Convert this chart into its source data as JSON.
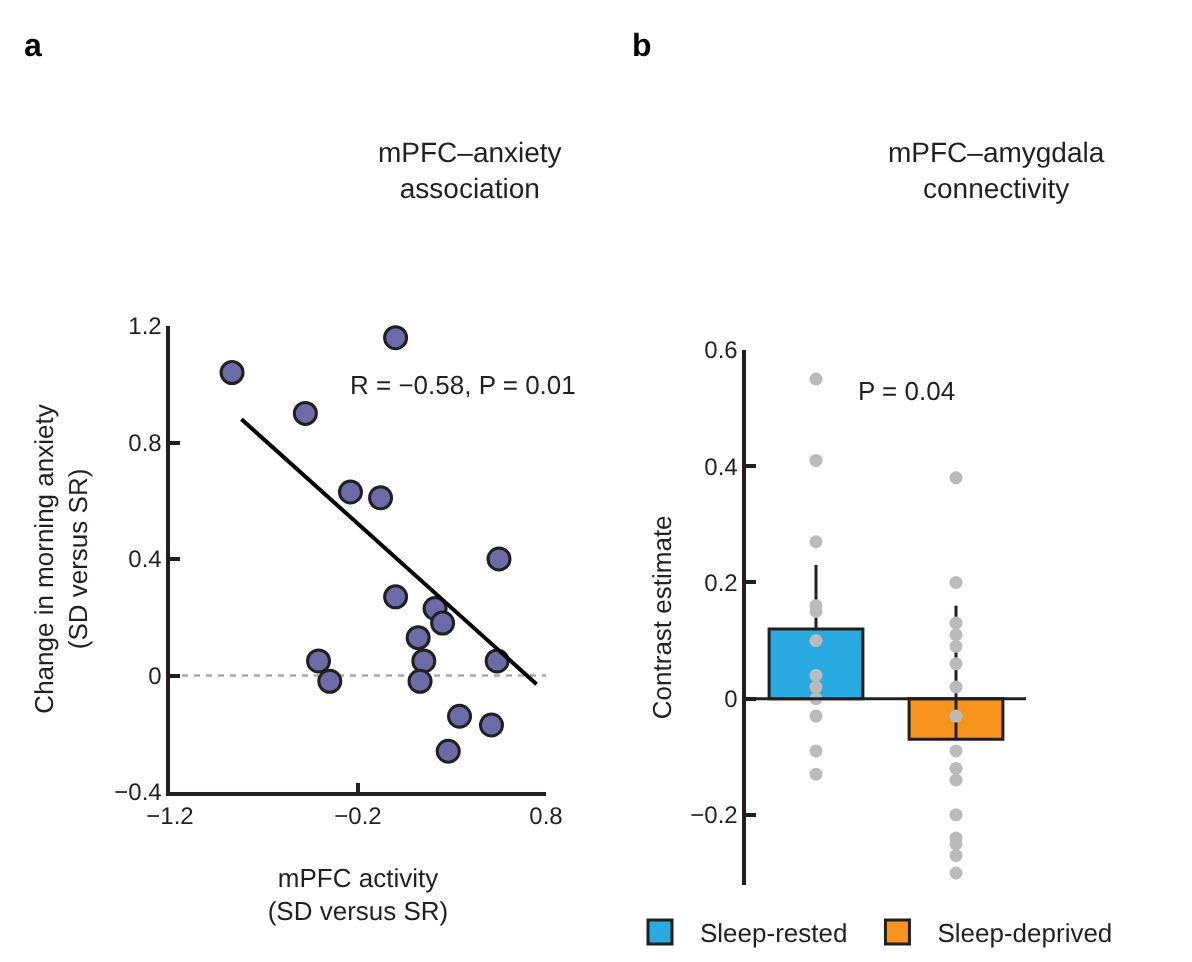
{
  "chart_data": [
    {
      "type": "scatter",
      "title": "a",
      "subtitle": "mPFC–anxiety\nassociation",
      "xlabel": "mPFC activity\n(SD versus SR)",
      "ylabel": "Change in morning anxiety\n(SD versus SR)",
      "annotations": [
        "R = −0.58, P = 0.01"
      ],
      "xlim": [
        -1.2,
        0.8
      ],
      "xticks": [
        {
          "value": -1.2,
          "label": "−1.2"
        },
        {
          "value": -0.2,
          "label": "−0.2"
        },
        0.8
      ],
      "ylim": [
        -0.4,
        1.2
      ],
      "yticks": [
        {
          "value": -0.4,
          "label": "−0.4"
        },
        0,
        0.4,
        0.8,
        1.2
      ],
      "grid": false,
      "legend": false,
      "ref_lines": [
        {
          "axis": "y",
          "value": 0,
          "color": "#aaaaaa",
          "line_style": "dotted"
        }
      ],
      "series": [
        {
          "type": "scatter",
          "marker": "circle",
          "color": "#6b6ba8",
          "x": [
            -0.87,
            0.0,
            -0.48,
            -0.24,
            -0.08,
            0.55,
            0.0,
            0.21,
            0.25,
            0.12,
            0.15,
            0.13,
            -0.41,
            -0.35,
            0.54,
            0.34,
            0.51,
            0.28
          ],
          "values": [
            1.04,
            1.16,
            0.9,
            0.63,
            0.61,
            0.4,
            0.27,
            0.23,
            0.18,
            0.13,
            0.05,
            -0.02,
            0.05,
            -0.02,
            0.05,
            -0.14,
            -0.17,
            -0.26
          ]
        },
        {
          "type": "line",
          "marker": "none",
          "color": "#000000",
          "x": [
            -0.82,
            0.75
          ],
          "values": [
            0.88,
            -0.03
          ]
        }
      ]
    },
    {
      "type": "bar",
      "title": "b",
      "subtitle": "mPFC–amygdala\nconnectivity",
      "ylabel": "Contrast estimate",
      "annotations": [
        "P = 0.04"
      ],
      "categories": [
        "Sleep-rested",
        "Sleep-deprived"
      ],
      "tick_labels": "y",
      "ylim": [
        -0.32,
        0.6
      ],
      "yticks": [
        {
          "value": -0.2,
          "label": "−0.2"
        },
        0,
        0.2,
        0.4,
        0.6
      ],
      "grid": false,
      "legend": "bottom",
      "ref_lines": [
        {
          "axis": "y",
          "value": 0,
          "color": "#231f20",
          "line_style": "solid"
        }
      ],
      "series": [
        {
          "name": "Sleep-rested",
          "color": "#29abe2",
          "values": [
            0.12,
            null
          ],
          "errors": [
            [
              0.12,
              0.23
            ],
            null
          ]
        },
        {
          "name": "Sleep-deprived",
          "color": "#f7941d",
          "values": [
            null,
            -0.07
          ],
          "errors": [
            null,
            [
              -0.07,
              0.16
            ]
          ]
        },
        {
          "type": "scatter",
          "marker": "circle",
          "color": "#bbbbbb",
          "x": [
            "Sleep-rested",
            "Sleep-rested",
            "Sleep-rested",
            "Sleep-rested",
            "Sleep-rested",
            "Sleep-rested",
            "Sleep-rested",
            "Sleep-rested",
            "Sleep-rested",
            "Sleep-rested",
            "Sleep-rested",
            "Sleep-rested",
            "Sleep-deprived",
            "Sleep-deprived",
            "Sleep-deprived",
            "Sleep-deprived",
            "Sleep-deprived",
            "Sleep-deprived",
            "Sleep-deprived",
            "Sleep-deprived",
            "Sleep-deprived",
            "Sleep-deprived",
            "Sleep-deprived",
            "Sleep-deprived",
            "Sleep-deprived",
            "Sleep-deprived",
            "Sleep-deprived",
            "Sleep-deprived"
          ],
          "values": [
            0.55,
            0.41,
            0.27,
            0.16,
            0.15,
            0.1,
            0.04,
            0.02,
            0.0,
            -0.03,
            -0.09,
            -0.13,
            0.38,
            0.2,
            0.13,
            0.11,
            0.09,
            0.06,
            0.02,
            -0.03,
            -0.09,
            -0.12,
            -0.14,
            -0.2,
            -0.24,
            -0.25,
            -0.27,
            -0.3
          ]
        }
      ]
    }
  ]
}
